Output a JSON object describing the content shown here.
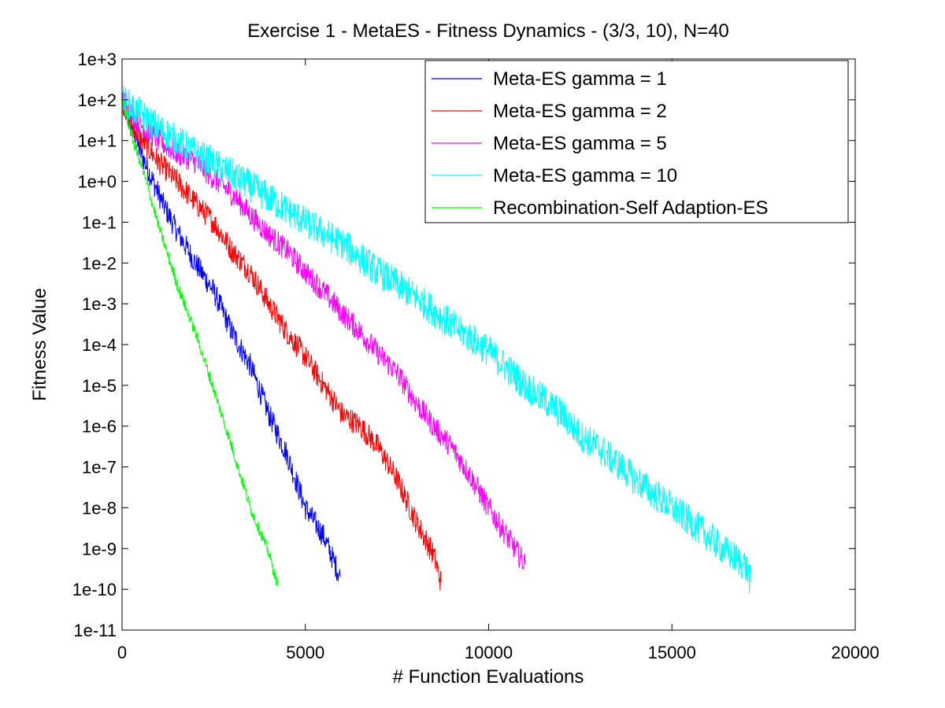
{
  "chart_data": {
    "type": "line",
    "title": "Exercise 1 - MetaES - Fitness Dynamics - (3/3, 10), N=40",
    "xlabel": "# Function Evaluations",
    "ylabel": "Fitness Value",
    "xlim": [
      0,
      20000
    ],
    "ylim": [
      1e-11,
      1000
    ],
    "yscale": "log",
    "grid": false,
    "legend_position": "top-right",
    "x_ticks": [
      0,
      5000,
      10000,
      15000,
      20000
    ],
    "x_tick_labels": [
      "0",
      "5000",
      "10000",
      "15000",
      "20000"
    ],
    "y_ticks": [
      1000.0,
      100.0,
      10.0,
      1.0,
      0.1,
      0.01,
      0.001,
      0.0001,
      1e-05,
      1e-06,
      1e-07,
      1e-08,
      1e-09,
      1e-10,
      1e-11
    ],
    "y_tick_labels": [
      "1e+3",
      "1e+2",
      "1e+1",
      "1e+0",
      "1e-1",
      "1e-2",
      "1e-3",
      "1e-4",
      "1e-5",
      "1e-6",
      "1e-7",
      "1e-8",
      "1e-9",
      "1e-10",
      "1e-11"
    ],
    "series": [
      {
        "name": "Meta-ES gamma = 1",
        "color": "#0000ff",
        "noise": 0.3,
        "x": [
          0,
          300,
          700,
          1100,
          1500,
          2000,
          2500,
          3000,
          3500,
          4000,
          4500,
          5000,
          5500,
          5950
        ],
        "y": [
          100,
          15,
          2,
          0.3,
          0.06,
          0.01,
          0.002,
          0.0002,
          3e-05,
          2e-06,
          2e-07,
          1e-08,
          2e-09,
          2e-10
        ]
      },
      {
        "name": "Meta-ES gamma = 2",
        "color": "#ff0000",
        "noise": 0.3,
        "x": [
          0,
          300,
          1000,
          1500,
          2000,
          2500,
          3000,
          3500,
          4000,
          4500,
          5000,
          5500,
          6000,
          6500,
          7000,
          7500,
          8000,
          8500,
          8700
        ],
        "y": [
          100,
          20,
          3,
          1,
          0.3,
          0.1,
          0.02,
          0.006,
          0.001,
          0.0002,
          5e-05,
          1e-05,
          2e-06,
          1e-06,
          3e-07,
          5e-08,
          5e-09,
          7e-10,
          1.5e-10
        ]
      },
      {
        "name": "Meta-ES gamma = 5",
        "color": "#ff00ff",
        "noise": 0.3,
        "x": [
          0,
          500,
          1000,
          1500,
          2000,
          2500,
          3000,
          3500,
          4000,
          4500,
          5000,
          5500,
          6000,
          6500,
          7000,
          7500,
          8000,
          8500,
          9000,
          9500,
          10000,
          10500,
          11000
        ],
        "y": [
          100,
          25,
          10,
          5,
          3,
          1.2,
          0.5,
          0.15,
          0.05,
          0.02,
          0.006,
          0.002,
          0.0006,
          0.0002,
          6e-05,
          2e-05,
          4e-06,
          1e-06,
          3e-07,
          6e-08,
          1e-08,
          2e-09,
          4e-10
        ]
      },
      {
        "name": "Meta-ES gamma = 10",
        "color": "#00ffff",
        "noise": 0.4,
        "x": [
          0,
          1000,
          2000,
          3000,
          4000,
          5000,
          6000,
          7000,
          8000,
          9000,
          10000,
          11000,
          12000,
          12500,
          13000,
          14000,
          15000,
          16000,
          16500,
          17000,
          17150
        ],
        "y": [
          100,
          20,
          5,
          1.5,
          0.4,
          0.1,
          0.03,
          0.006,
          0.0015,
          0.0003,
          7e-05,
          1e-05,
          2e-06,
          6e-07,
          3e-07,
          5e-08,
          1e-08,
          2e-09,
          8e-10,
          4e-10,
          1.5e-10
        ]
      },
      {
        "name": "Recombination-Self Adaption-ES",
        "color": "#00ff00",
        "noise": 0.15,
        "x": [
          0,
          300,
          600,
          1000,
          1500,
          2000,
          2500,
          3000,
          3500,
          4000,
          4250
        ],
        "y": [
          100,
          10,
          1.5,
          0.08,
          0.003,
          0.0002,
          8e-06,
          3e-07,
          1e-08,
          8e-10,
          1.2e-10
        ]
      }
    ]
  }
}
